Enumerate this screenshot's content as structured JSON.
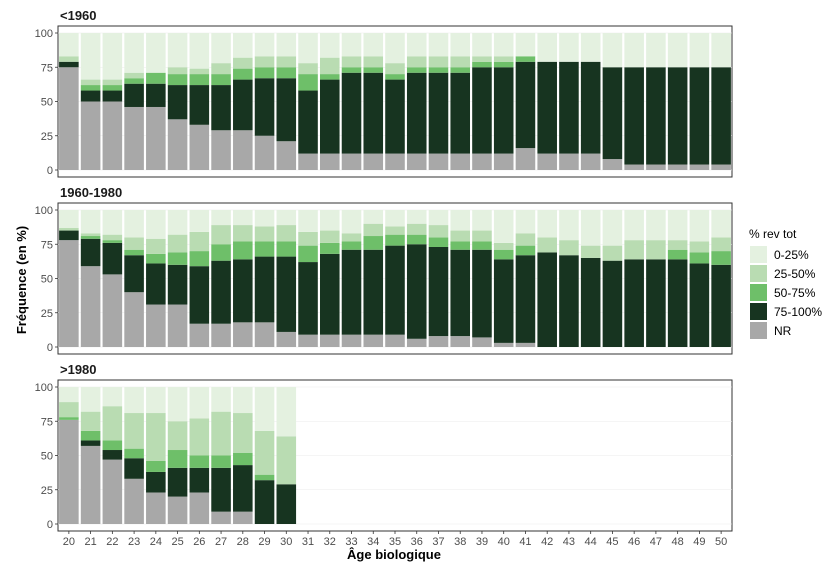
{
  "chart_data": {
    "type": "bar",
    "stacked": true,
    "xlabel": "Âge biologique",
    "ylabel": "Fréquence (en %)",
    "ylim": [
      0,
      100
    ],
    "yticks": [
      "0",
      "25",
      "50",
      "75",
      "100"
    ],
    "legend": {
      "title": "% rev tot",
      "position": "right",
      "items": [
        {
          "key": "q0_25",
          "label": "0-25%",
          "color": "#e4f1e0"
        },
        {
          "key": "q25_50",
          "label": "25-50%",
          "color": "#b9dcb2"
        },
        {
          "key": "q50_75",
          "label": "50-75%",
          "color": "#6ebf69"
        },
        {
          "key": "q75_100",
          "label": "75-100%",
          "color": "#173420"
        },
        {
          "key": "nr",
          "label": "NR",
          "color": "#a8a8a8"
        }
      ]
    },
    "categories": [
      20,
      21,
      22,
      23,
      24,
      25,
      26,
      27,
      28,
      29,
      30,
      31,
      32,
      33,
      34,
      35,
      36,
      37,
      38,
      39,
      40,
      41,
      42,
      43,
      44,
      45,
      46,
      47,
      48,
      49,
      50
    ],
    "panels": [
      {
        "title": "<1960",
        "stacks": [
          {
            "age": 20,
            "nr": 75,
            "q75_100": 4,
            "q50_75": 0,
            "q25_50": 4,
            "q0_25": 17
          },
          {
            "age": 21,
            "nr": 50,
            "q75_100": 8,
            "q50_75": 4,
            "q25_50": 4,
            "q0_25": 34
          },
          {
            "age": 22,
            "nr": 50,
            "q75_100": 8,
            "q50_75": 4,
            "q25_50": 4,
            "q0_25": 34
          },
          {
            "age": 23,
            "nr": 46,
            "q75_100": 17,
            "q50_75": 4,
            "q25_50": 4,
            "q0_25": 29
          },
          {
            "age": 24,
            "nr": 46,
            "q75_100": 17,
            "q50_75": 8,
            "q25_50": 0,
            "q0_25": 29
          },
          {
            "age": 25,
            "nr": 37,
            "q75_100": 25,
            "q50_75": 8,
            "q25_50": 5,
            "q0_25": 25
          },
          {
            "age": 26,
            "nr": 33,
            "q75_100": 29,
            "q50_75": 8,
            "q25_50": 4,
            "q0_25": 26
          },
          {
            "age": 27,
            "nr": 29,
            "q75_100": 33,
            "q50_75": 8,
            "q25_50": 8,
            "q0_25": 22
          },
          {
            "age": 28,
            "nr": 29,
            "q75_100": 37,
            "q50_75": 8,
            "q25_50": 8,
            "q0_25": 18
          },
          {
            "age": 29,
            "nr": 25,
            "q75_100": 42,
            "q50_75": 8,
            "q25_50": 8,
            "q0_25": 17
          },
          {
            "age": 30,
            "nr": 21,
            "q75_100": 46,
            "q50_75": 8,
            "q25_50": 8,
            "q0_25": 17
          },
          {
            "age": 31,
            "nr": 12,
            "q75_100": 46,
            "q50_75": 12,
            "q25_50": 8,
            "q0_25": 22
          },
          {
            "age": 32,
            "nr": 12,
            "q75_100": 54,
            "q50_75": 4,
            "q25_50": 12,
            "q0_25": 18
          },
          {
            "age": 33,
            "nr": 12,
            "q75_100": 59,
            "q50_75": 4,
            "q25_50": 8,
            "q0_25": 17
          },
          {
            "age": 34,
            "nr": 12,
            "q75_100": 59,
            "q50_75": 4,
            "q25_50": 8,
            "q0_25": 17
          },
          {
            "age": 35,
            "nr": 12,
            "q75_100": 54,
            "q50_75": 4,
            "q25_50": 8,
            "q0_25": 22
          },
          {
            "age": 36,
            "nr": 12,
            "q75_100": 59,
            "q50_75": 4,
            "q25_50": 8,
            "q0_25": 17
          },
          {
            "age": 37,
            "nr": 12,
            "q75_100": 59,
            "q50_75": 4,
            "q25_50": 8,
            "q0_25": 17
          },
          {
            "age": 38,
            "nr": 12,
            "q75_100": 59,
            "q50_75": 4,
            "q25_50": 8,
            "q0_25": 17
          },
          {
            "age": 39,
            "nr": 12,
            "q75_100": 63,
            "q50_75": 4,
            "q25_50": 4,
            "q0_25": 17
          },
          {
            "age": 40,
            "nr": 12,
            "q75_100": 63,
            "q50_75": 4,
            "q25_50": 4,
            "q0_25": 17
          },
          {
            "age": 41,
            "nr": 16,
            "q75_100": 63,
            "q50_75": 4,
            "q25_50": 0,
            "q0_25": 17
          },
          {
            "age": 42,
            "nr": 12,
            "q75_100": 67,
            "q50_75": 0,
            "q25_50": 0,
            "q0_25": 21
          },
          {
            "age": 43,
            "nr": 12,
            "q75_100": 67,
            "q50_75": 0,
            "q25_50": 0,
            "q0_25": 21
          },
          {
            "age": 44,
            "nr": 12,
            "q75_100": 67,
            "q50_75": 0,
            "q25_50": 0,
            "q0_25": 21
          },
          {
            "age": 45,
            "nr": 8,
            "q75_100": 67,
            "q50_75": 0,
            "q25_50": 0,
            "q0_25": 25
          },
          {
            "age": 46,
            "nr": 4,
            "q75_100": 71,
            "q50_75": 0,
            "q25_50": 0,
            "q0_25": 25
          },
          {
            "age": 47,
            "nr": 4,
            "q75_100": 71,
            "q50_75": 0,
            "q25_50": 0,
            "q0_25": 25
          },
          {
            "age": 48,
            "nr": 4,
            "q75_100": 71,
            "q50_75": 0,
            "q25_50": 0,
            "q0_25": 25
          },
          {
            "age": 49,
            "nr": 4,
            "q75_100": 71,
            "q50_75": 0,
            "q25_50": 0,
            "q0_25": 25
          },
          {
            "age": 50,
            "nr": 4,
            "q75_100": 71,
            "q50_75": 0,
            "q25_50": 0,
            "q0_25": 25
          }
        ]
      },
      {
        "title": "1960-1980",
        "stacks": [
          {
            "age": 20,
            "nr": 78,
            "q75_100": 7,
            "q50_75": 0,
            "q25_50": 2,
            "q0_25": 13
          },
          {
            "age": 21,
            "nr": 59,
            "q75_100": 20,
            "q50_75": 2,
            "q25_50": 2,
            "q0_25": 17
          },
          {
            "age": 22,
            "nr": 53,
            "q75_100": 23,
            "q50_75": 2,
            "q25_50": 4,
            "q0_25": 18
          },
          {
            "age": 23,
            "nr": 40,
            "q75_100": 27,
            "q50_75": 4,
            "q25_50": 9,
            "q0_25": 20
          },
          {
            "age": 24,
            "nr": 31,
            "q75_100": 30,
            "q50_75": 7,
            "q25_50": 11,
            "q0_25": 21
          },
          {
            "age": 25,
            "nr": 31,
            "q75_100": 29,
            "q50_75": 9,
            "q25_50": 13,
            "q0_25": 18
          },
          {
            "age": 26,
            "nr": 17,
            "q75_100": 42,
            "q50_75": 11,
            "q25_50": 14,
            "q0_25": 16
          },
          {
            "age": 27,
            "nr": 17,
            "q75_100": 46,
            "q50_75": 12,
            "q25_50": 14,
            "q0_25": 11
          },
          {
            "age": 28,
            "nr": 18,
            "q75_100": 46,
            "q50_75": 13,
            "q25_50": 12,
            "q0_25": 11
          },
          {
            "age": 29,
            "nr": 18,
            "q75_100": 48,
            "q50_75": 11,
            "q25_50": 11,
            "q0_25": 12
          },
          {
            "age": 30,
            "nr": 11,
            "q75_100": 55,
            "q50_75": 11,
            "q25_50": 12,
            "q0_25": 11
          },
          {
            "age": 31,
            "nr": 9,
            "q75_100": 53,
            "q50_75": 12,
            "q25_50": 10,
            "q0_25": 16
          },
          {
            "age": 32,
            "nr": 9,
            "q75_100": 59,
            "q50_75": 8,
            "q25_50": 9,
            "q0_25": 15
          },
          {
            "age": 33,
            "nr": 9,
            "q75_100": 62,
            "q50_75": 6,
            "q25_50": 6,
            "q0_25": 17
          },
          {
            "age": 34,
            "nr": 9,
            "q75_100": 62,
            "q50_75": 10,
            "q25_50": 9,
            "q0_25": 10
          },
          {
            "age": 35,
            "nr": 9,
            "q75_100": 65,
            "q50_75": 8,
            "q25_50": 6,
            "q0_25": 12
          },
          {
            "age": 36,
            "nr": 6,
            "q75_100": 69,
            "q50_75": 7,
            "q25_50": 8,
            "q0_25": 10
          },
          {
            "age": 37,
            "nr": 8,
            "q75_100": 65,
            "q50_75": 7,
            "q25_50": 9,
            "q0_25": 11
          },
          {
            "age": 38,
            "nr": 8,
            "q75_100": 63,
            "q50_75": 6,
            "q25_50": 8,
            "q0_25": 15
          },
          {
            "age": 39,
            "nr": 7,
            "q75_100": 64,
            "q50_75": 6,
            "q25_50": 8,
            "q0_25": 15
          },
          {
            "age": 40,
            "nr": 3,
            "q75_100": 61,
            "q50_75": 7,
            "q25_50": 5,
            "q0_25": 24
          },
          {
            "age": 41,
            "nr": 3,
            "q75_100": 64,
            "q50_75": 7,
            "q25_50": 9,
            "q0_25": 17
          },
          {
            "age": 42,
            "nr": 0,
            "q75_100": 69,
            "q50_75": 0,
            "q25_50": 11,
            "q0_25": 20
          },
          {
            "age": 43,
            "nr": 0,
            "q75_100": 67,
            "q50_75": 0,
            "q25_50": 11,
            "q0_25": 22
          },
          {
            "age": 44,
            "nr": 0,
            "q75_100": 65,
            "q50_75": 0,
            "q25_50": 9,
            "q0_25": 26
          },
          {
            "age": 45,
            "nr": 0,
            "q75_100": 63,
            "q50_75": 0,
            "q25_50": 11,
            "q0_25": 26
          },
          {
            "age": 46,
            "nr": 0,
            "q75_100": 64,
            "q50_75": 0,
            "q25_50": 14,
            "q0_25": 22
          },
          {
            "age": 47,
            "nr": 0,
            "q75_100": 64,
            "q50_75": 0,
            "q25_50": 14,
            "q0_25": 22
          },
          {
            "age": 48,
            "nr": 0,
            "q75_100": 64,
            "q50_75": 7,
            "q25_50": 7,
            "q0_25": 22
          },
          {
            "age": 49,
            "nr": 0,
            "q75_100": 61,
            "q50_75": 8,
            "q25_50": 8,
            "q0_25": 23
          },
          {
            "age": 50,
            "nr": 0,
            "q75_100": 60,
            "q50_75": 10,
            "q25_50": 10,
            "q0_25": 20
          }
        ]
      },
      {
        "title": ">1980",
        "stacks": [
          {
            "age": 20,
            "nr": 76,
            "q75_100": 0,
            "q50_75": 2,
            "q25_50": 11,
            "q0_25": 11
          },
          {
            "age": 21,
            "nr": 57,
            "q75_100": 4,
            "q50_75": 7,
            "q25_50": 14,
            "q0_25": 18
          },
          {
            "age": 22,
            "nr": 47,
            "q75_100": 7,
            "q50_75": 7,
            "q25_50": 25,
            "q0_25": 14
          },
          {
            "age": 23,
            "nr": 33,
            "q75_100": 15,
            "q50_75": 7,
            "q25_50": 26,
            "q0_25": 19
          },
          {
            "age": 24,
            "nr": 23,
            "q75_100": 15,
            "q50_75": 8,
            "q25_50": 35,
            "q0_25": 19
          },
          {
            "age": 25,
            "nr": 20,
            "q75_100": 21,
            "q50_75": 13,
            "q25_50": 21,
            "q0_25": 25
          },
          {
            "age": 26,
            "nr": 23,
            "q75_100": 18,
            "q50_75": 9,
            "q25_50": 27,
            "q0_25": 23
          },
          {
            "age": 27,
            "nr": 9,
            "q75_100": 32,
            "q50_75": 9,
            "q25_50": 32,
            "q0_25": 18
          },
          {
            "age": 28,
            "nr": 9,
            "q75_100": 34,
            "q50_75": 9,
            "q25_50": 29,
            "q0_25": 19
          },
          {
            "age": 29,
            "nr": 0,
            "q75_100": 32,
            "q50_75": 4,
            "q25_50": 32,
            "q0_25": 32
          },
          {
            "age": 30,
            "nr": 0,
            "q75_100": 29,
            "q50_75": 0,
            "q25_50": 35,
            "q0_25": 36
          }
        ]
      }
    ]
  }
}
